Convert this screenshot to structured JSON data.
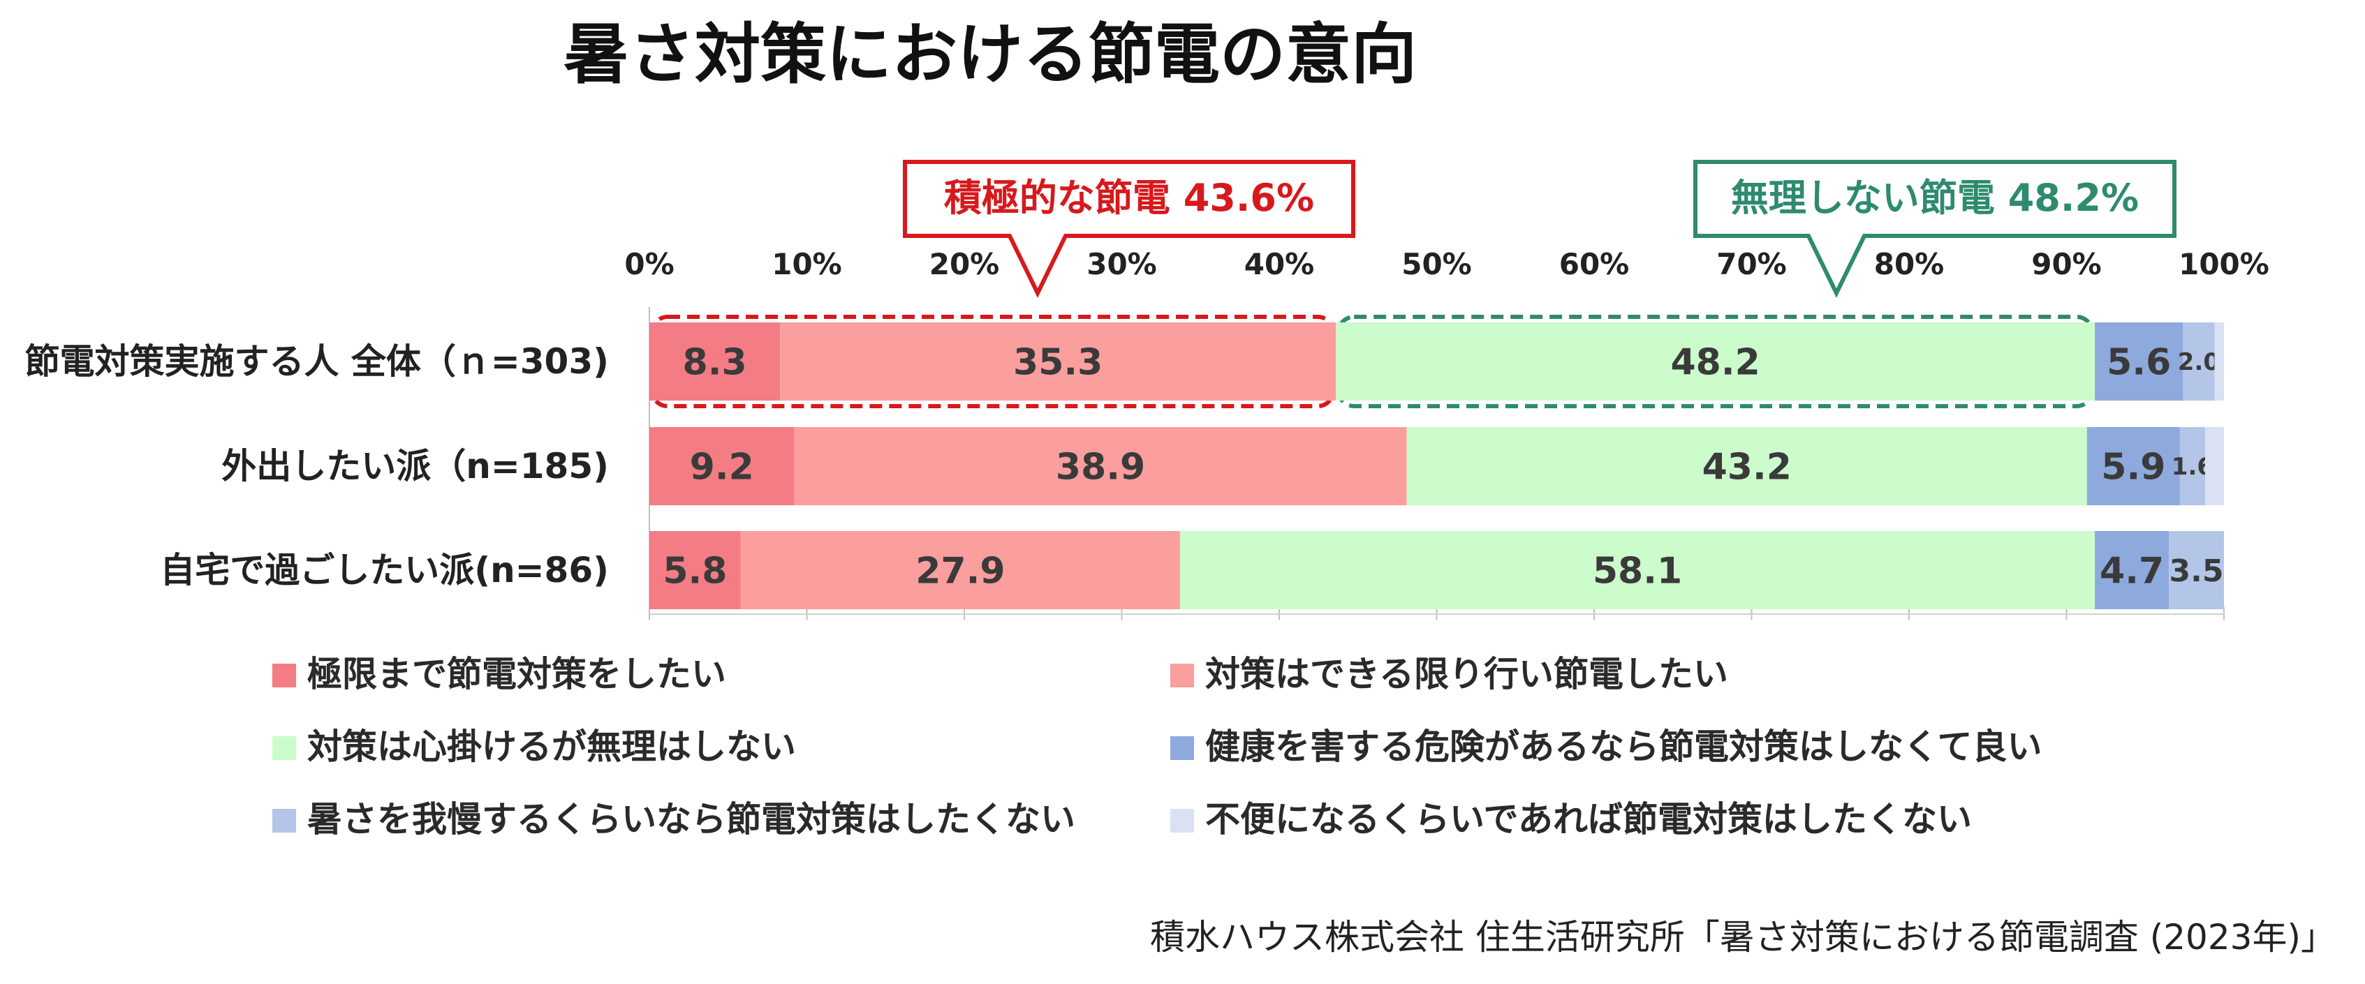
{
  "chart_data": {
    "type": "bar",
    "orientation": "horizontal",
    "stacked": true,
    "title": "暑さ対策における節電の意向",
    "xlim": [
      0,
      100
    ],
    "x_ticks": [
      "0%",
      "10%",
      "20%",
      "30%",
      "40%",
      "50%",
      "60%",
      "70%",
      "80%",
      "90%",
      "100%"
    ],
    "categories": [
      "節電対策実施する人 全体（ｎ=303)",
      "外出したい派（n=185)",
      "自宅で過ごしたい派(n=86)"
    ],
    "series": [
      {
        "name": "極限まで節電対策をしたい",
        "color": "#F47C84",
        "values": [
          8.3,
          9.2,
          5.8
        ],
        "labels": [
          "8.3",
          "9.2",
          "5.8"
        ]
      },
      {
        "name": "対策はできる限り行い節電したい",
        "color": "#FA9E9E",
        "values": [
          35.3,
          38.9,
          27.9
        ],
        "labels": [
          "35.3",
          "38.9",
          "27.9"
        ]
      },
      {
        "name": "対策は心掛けるが無理はしない",
        "color": "#CCFCCC",
        "values": [
          48.2,
          43.2,
          58.1
        ],
        "labels": [
          "48.2",
          "43.2",
          "58.1"
        ]
      },
      {
        "name": "健康を害する危険があるなら節電対策はしなくて良い",
        "color": "#8EA9DB",
        "values": [
          5.6,
          5.9,
          4.7
        ],
        "labels": [
          "5.6",
          "5.9",
          "4.7"
        ]
      },
      {
        "name": "暑さを我慢するくらいなら節電対策はしたくない",
        "color": "#B4C6E7",
        "values": [
          2.0,
          1.6,
          3.5
        ],
        "labels": [
          "2.0",
          "1.6",
          "3.5"
        ]
      },
      {
        "name": "不便になるくらいであれば節電対策はしたくない",
        "color": "#D9E1F2",
        "values": [
          0.6,
          1.2,
          0.0
        ],
        "labels": [
          "",
          "",
          ""
        ]
      }
    ],
    "legend_position": "bottom",
    "gridlines": false,
    "callouts": [
      {
        "text": "積極的な節電 43.6%",
        "color": "#D7191C",
        "range": [
          0,
          43.6
        ]
      },
      {
        "text": "無理しない節電 48.2%",
        "color": "#2E8B6E",
        "range": [
          43.6,
          91.8
        ]
      }
    ],
    "source": "積水ハウス株式会社 住生活研究所「暑さ対策における節電調査 (2023年)」"
  }
}
